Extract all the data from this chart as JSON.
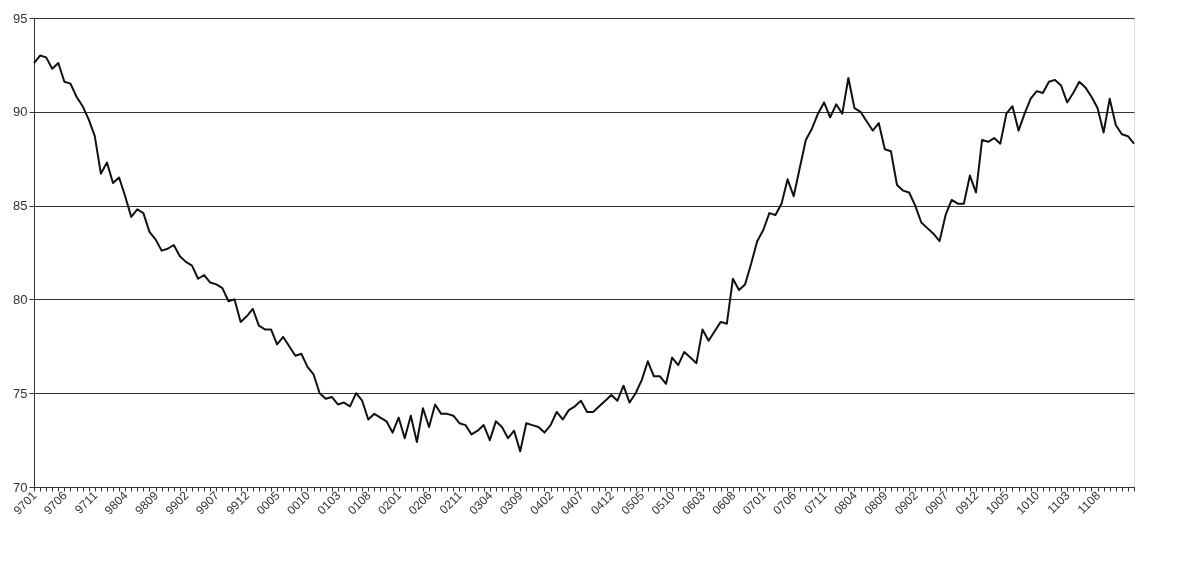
{
  "chart_data": {
    "type": "line",
    "categories": [
      "9701",
      null,
      null,
      null,
      null,
      "9706",
      null,
      null,
      null,
      null,
      "9711",
      null,
      null,
      null,
      null,
      "9804",
      null,
      null,
      null,
      null,
      "9809",
      null,
      null,
      null,
      null,
      "9902",
      null,
      null,
      null,
      null,
      "9907",
      null,
      null,
      null,
      null,
      "9912",
      null,
      null,
      null,
      null,
      "0005",
      null,
      null,
      null,
      null,
      "0010",
      null,
      null,
      null,
      null,
      "0103",
      null,
      null,
      null,
      null,
      "0108",
      null,
      null,
      null,
      null,
      "0201",
      null,
      null,
      null,
      null,
      "0206",
      null,
      null,
      null,
      null,
      "0211",
      null,
      null,
      null,
      null,
      "0304",
      null,
      null,
      null,
      null,
      "0309",
      null,
      null,
      null,
      null,
      "0402",
      null,
      null,
      null,
      null,
      "0407",
      null,
      null,
      null,
      null,
      "0412",
      null,
      null,
      null,
      null,
      "0505",
      null,
      null,
      null,
      null,
      "0510",
      null,
      null,
      null,
      null,
      "0603",
      null,
      null,
      null,
      null,
      "0608",
      null,
      null,
      null,
      null,
      "0701",
      null,
      null,
      null,
      null,
      "0706",
      null,
      null,
      null,
      null,
      "0711",
      null,
      null,
      null,
      null,
      "0804",
      null,
      null,
      null,
      null,
      "0809",
      null,
      null,
      null,
      null,
      "0902",
      null,
      null,
      null,
      null,
      "0907",
      null,
      null,
      null,
      null,
      "0912",
      null,
      null,
      null,
      null,
      "1005",
      null,
      null,
      null,
      null,
      "1010",
      null,
      null,
      null,
      null,
      "1103",
      null,
      null,
      null,
      null,
      "1108",
      null,
      null,
      null,
      null,
      null,
      null
    ],
    "series": [
      {
        "color": "#111111",
        "values": [
          92.6,
          93.0,
          92.9,
          92.3,
          92.6,
          91.6,
          91.5,
          90.8,
          90.3,
          89.6,
          88.7,
          86.7,
          87.3,
          86.2,
          86.5,
          85.5,
          84.4,
          84.8,
          84.6,
          83.6,
          83.2,
          82.6,
          82.7,
          82.9,
          82.3,
          82.0,
          81.8,
          81.1,
          81.3,
          80.9,
          80.8,
          80.6,
          79.9,
          80.0,
          78.8,
          79.1,
          79.5,
          78.6,
          78.4,
          78.4,
          77.6,
          78.0,
          77.5,
          77.0,
          77.1,
          76.4,
          76.0,
          75.0,
          74.7,
          74.8,
          74.4,
          74.5,
          74.3,
          75.0,
          74.6,
          73.6,
          73.9,
          73.7,
          73.5,
          72.9,
          73.7,
          72.6,
          73.8,
          72.4,
          74.2,
          73.2,
          74.4,
          73.9,
          73.9,
          73.8,
          73.4,
          73.3,
          72.8,
          73.0,
          73.3,
          72.5,
          73.5,
          73.2,
          72.6,
          73.0,
          71.9,
          73.4,
          73.3,
          73.2,
          72.9,
          73.3,
          74.0,
          73.6,
          74.1,
          74.3,
          74.6,
          74.0,
          74.0,
          74.3,
          74.6,
          74.9,
          74.6,
          75.4,
          74.5,
          75.0,
          75.7,
          76.7,
          75.9,
          75.9,
          75.5,
          76.9,
          76.5,
          77.2,
          76.9,
          76.6,
          78.4,
          77.8,
          78.3,
          78.8,
          78.7,
          81.1,
          80.5,
          80.8,
          81.9,
          83.1,
          83.7,
          84.6,
          84.5,
          85.1,
          86.4,
          85.5,
          87.0,
          88.5,
          89.1,
          89.9,
          90.5,
          89.7,
          90.4,
          89.9,
          91.8,
          90.2,
          90.0,
          89.5,
          89.0,
          89.4,
          88.0,
          87.9,
          86.1,
          85.8,
          85.7,
          85.0,
          84.1,
          83.8,
          83.5,
          83.1,
          84.5,
          85.3,
          85.1,
          85.1,
          86.6,
          85.7,
          88.5,
          88.4,
          88.6,
          88.3,
          89.9,
          90.3,
          89.0,
          89.9,
          90.7,
          91.1,
          91.0,
          91.6,
          91.7,
          91.4,
          90.5,
          91.0,
          91.6,
          91.3,
          90.8,
          90.2,
          88.9,
          90.7,
          89.3,
          88.8,
          88.7,
          88.3
        ]
      }
    ],
    "ylim": [
      70,
      95
    ],
    "yticks": [
      70,
      75,
      80,
      85,
      90,
      95
    ],
    "grid": "y",
    "marker": "none",
    "line_style": "solid"
  }
}
